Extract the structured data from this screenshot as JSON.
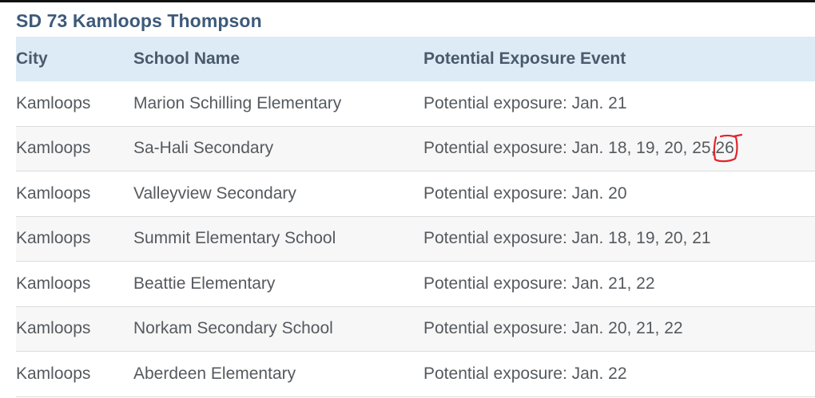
{
  "title": "SD 73 Kamloops Thompson",
  "columns": {
    "city": "City",
    "school": "School Name",
    "event": "Potential Exposure Event"
  },
  "rows": [
    {
      "city": "Kamloops",
      "school": "Marion Schilling Elementary",
      "event": "Potential exposure: Jan. 21",
      "event_suffix": ""
    },
    {
      "city": "Kamloops",
      "school": "Sa-Hali Secondary",
      "event": "Potential exposure: Jan. 18, 19, 20, 25,",
      "event_suffix": "26"
    },
    {
      "city": "Kamloops",
      "school": "Valleyview Secondary",
      "event": "Potential exposure: Jan. 20",
      "event_suffix": ""
    },
    {
      "city": "Kamloops",
      "school": "Summit Elementary School",
      "event": "Potential exposure: Jan. 18, 19, 20, 21",
      "event_suffix": ""
    },
    {
      "city": "Kamloops",
      "school": "Beattie Elementary",
      "event": "Potential exposure: Jan. 21, 22",
      "event_suffix": ""
    },
    {
      "city": "Kamloops",
      "school": "Norkam Secondary School",
      "event": "Potential exposure: Jan. 20, 21, 22",
      "event_suffix": ""
    },
    {
      "city": "Kamloops",
      "school": "Aberdeen Elementary",
      "event": "Potential exposure: Jan. 22",
      "event_suffix": ""
    }
  ],
  "colors": {
    "title": "#3d5a7a",
    "header_bg": "#dcebf5",
    "annotation": "#e0262e"
  }
}
